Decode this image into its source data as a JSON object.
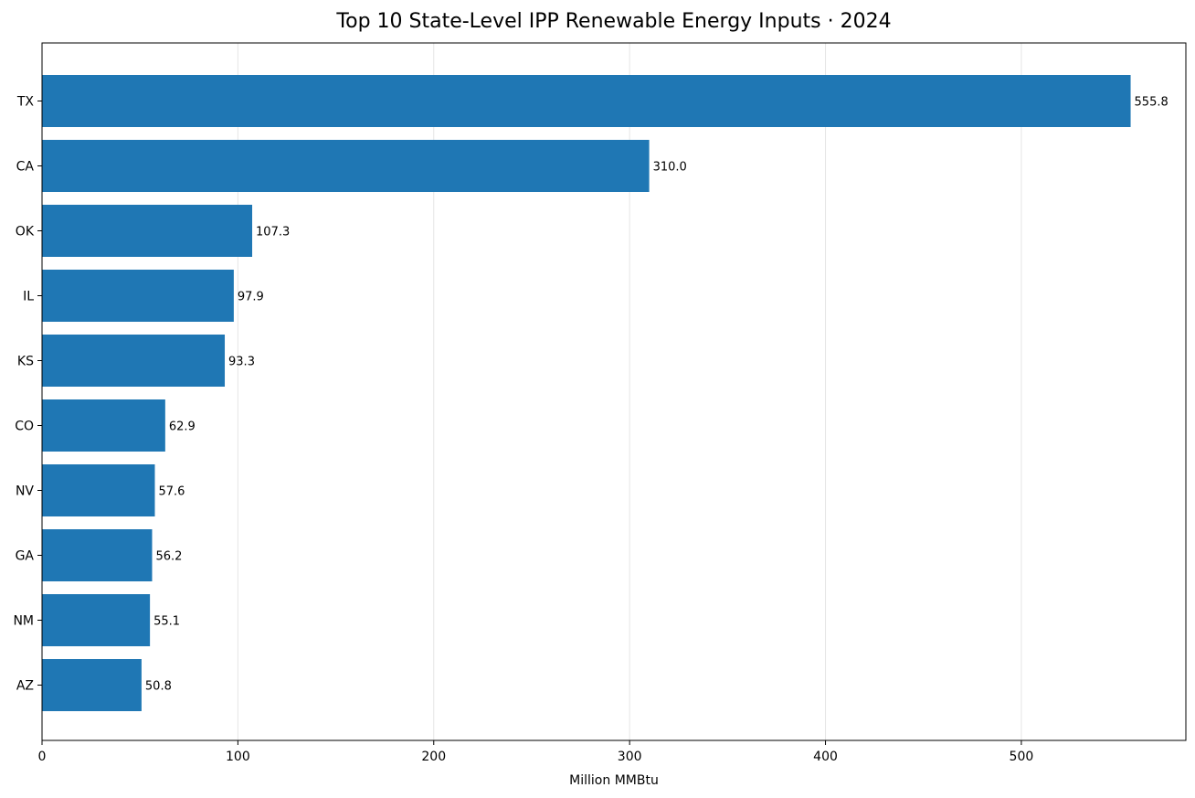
{
  "chart_data": {
    "type": "bar",
    "orientation": "horizontal",
    "title": "Top 10 State-Level IPP Renewable Energy Inputs · 2024",
    "xlabel": "Million MMBtu",
    "ylabel": "",
    "categories": [
      "TX",
      "CA",
      "OK",
      "IL",
      "KS",
      "CO",
      "NV",
      "GA",
      "NM",
      "AZ"
    ],
    "values": [
      555.8,
      310.0,
      107.3,
      97.9,
      93.3,
      62.9,
      57.6,
      56.2,
      55.1,
      50.8
    ],
    "data_labels": [
      "555.8",
      "310.0",
      "107.3",
      "97.9",
      "93.3",
      "62.9",
      "57.6",
      "56.2",
      "55.1",
      "50.8"
    ],
    "xlim": [
      0,
      584
    ],
    "xticks": [
      0,
      100,
      200,
      300,
      400,
      500
    ],
    "xtick_labels": [
      "0",
      "100",
      "200",
      "300",
      "400",
      "500"
    ],
    "grid": "vertical",
    "colors": {
      "bar": "#1f77b4",
      "grid": "#e6e6e6",
      "axis": "#000000"
    }
  }
}
